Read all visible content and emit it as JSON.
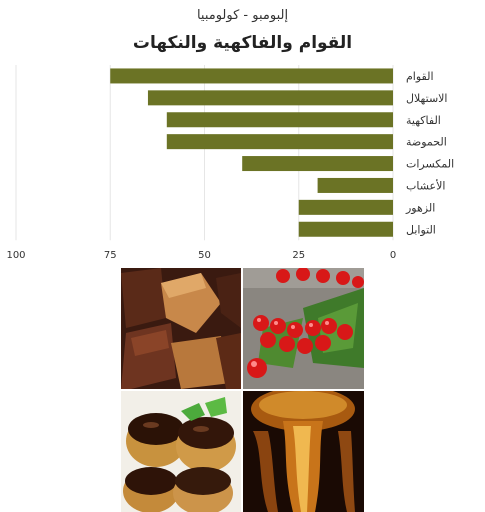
{
  "subtitle": "إلبومبو - كولومبيا",
  "title": "القوام والفاكهية والنكهات",
  "chart_data": {
    "type": "bar",
    "orientation": "horizontal",
    "x_reversed": true,
    "categories": [
      "القوام",
      "الاستهلال",
      "الفاكهية",
      "الحموضة",
      "المكسرات",
      "الأعشاب",
      "الزهور",
      "التوابل"
    ],
    "values": [
      75,
      65,
      60,
      60,
      40,
      20,
      25,
      25
    ],
    "xlim": [
      0,
      100
    ],
    "xticks": [
      0,
      25,
      50,
      75,
      100
    ],
    "grid": true,
    "bar_color": "#6b7325"
  },
  "photos": [
    {
      "icon": "fudge-photo"
    },
    {
      "icon": "red-currant-photo"
    },
    {
      "icon": "chocolate-profiterole-photo"
    },
    {
      "icon": "honey-photo"
    }
  ]
}
